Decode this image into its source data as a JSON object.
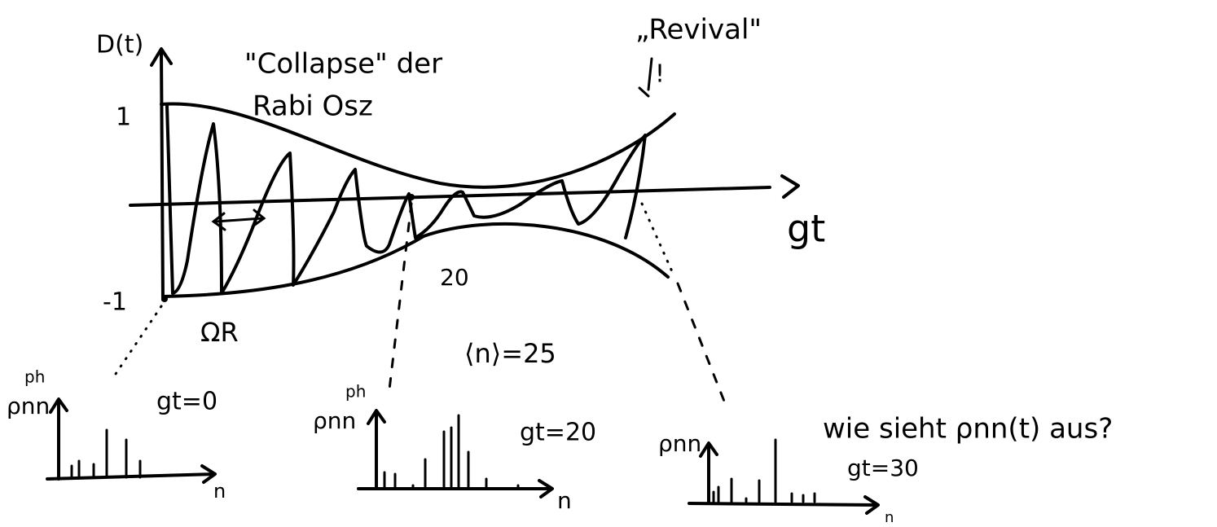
{
  "plot": {
    "y_label": "D(t)",
    "y_tick_top": "1",
    "y_tick_bottom": "-1",
    "x_label": "gt",
    "x_mark": "20",
    "rabi_label": "ΩR",
    "mean_label": "⟨n⟩=25",
    "collapse_line1": "\"Collapse\" der",
    "collapse_line2": "Rabi Osz",
    "revival_label": "„Revival\"",
    "revival_pointer": "!"
  },
  "histograms": [
    {
      "y_label": "ρnn",
      "y_superscript": "ph",
      "x_label": "n",
      "time_label": "gt=0"
    },
    {
      "y_label": "ρnn",
      "y_superscript": "ph",
      "x_label": "n",
      "time_label": "gt=20"
    },
    {
      "y_label": "ρnn",
      "x_label": "n",
      "time_label": "gt=30"
    }
  ],
  "question": "wie sieht ρnn(t) aus?"
}
